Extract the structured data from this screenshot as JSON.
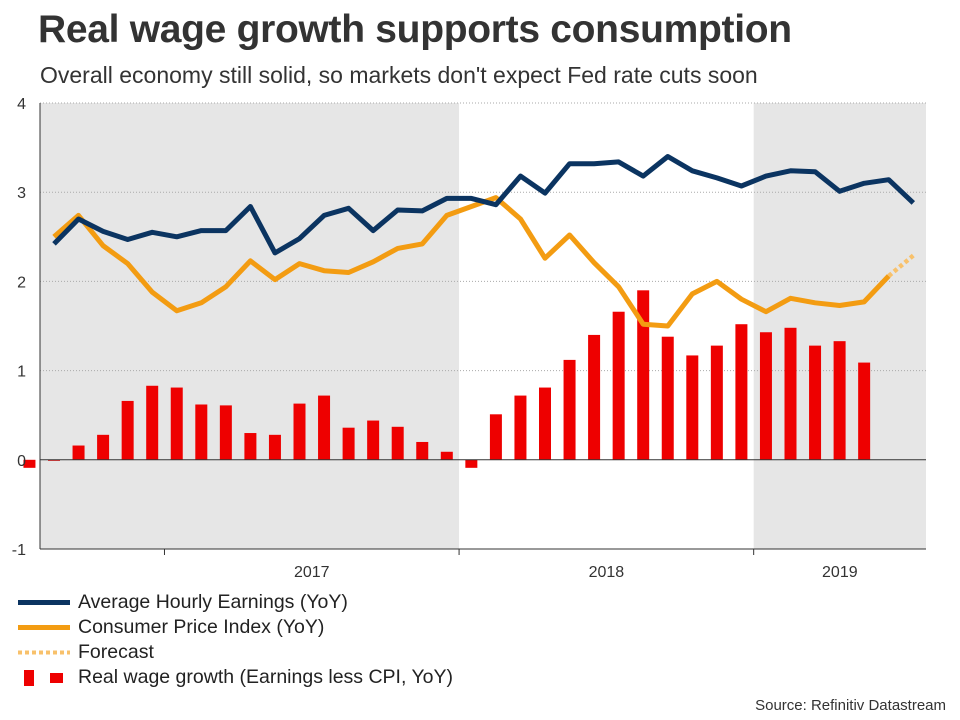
{
  "title": "Real wage growth supports consumption",
  "subtitle": "Overall economy still solid, so markets don't expect Fed rate cuts soon",
  "source": "Source: Refinitiv Datastream",
  "colors": {
    "earnings": "#0b3461",
    "cpi": "#f39c12",
    "forecast": "#f8c16b",
    "real_wage": "#ee0000",
    "shade": "#e6e6e6",
    "grid": "#aaaaaa"
  },
  "legend": {
    "earnings": "Average Hourly Earnings (YoY)",
    "cpi": "Consumer Price Index (YoY)",
    "forecast": "Forecast",
    "real_wage": "Real wage growth (Earnings less CPI, YoY)"
  },
  "chart_data": {
    "type": "bar+line",
    "title": "Real wage growth supports consumption",
    "x_start": "2016-08",
    "x_end": "2019-12",
    "year_labels": [
      "2017",
      "2018",
      "2019"
    ],
    "ylim": [
      -1,
      4
    ],
    "yticks": [
      "-1",
      "0",
      "1",
      "2",
      "3",
      "4"
    ],
    "shaded_years": [
      "2017",
      "2019"
    ],
    "series": [
      {
        "name": "Average Hourly Earnings (YoY)",
        "type": "line",
        "months": [
          "2016-08",
          "2016-09",
          "2016-10",
          "2016-11",
          "2016-12",
          "2017-01",
          "2017-02",
          "2017-03",
          "2017-04",
          "2017-05",
          "2017-06",
          "2017-07",
          "2017-08",
          "2017-09",
          "2017-10",
          "2017-11",
          "2017-12",
          "2018-01",
          "2018-02",
          "2018-03",
          "2018-04",
          "2018-05",
          "2018-06",
          "2018-07",
          "2018-08",
          "2018-09",
          "2018-10",
          "2018-11",
          "2018-12",
          "2019-01",
          "2019-02",
          "2019-03",
          "2019-04",
          "2019-05",
          "2019-06",
          "2019-07",
          "2019-08",
          "2019-09",
          "2019-10",
          "2019-11"
        ],
        "values": [
          2.42,
          2.7,
          2.56,
          2.47,
          2.55,
          2.5,
          2.57,
          2.57,
          2.84,
          2.32,
          2.48,
          2.74,
          2.82,
          2.57,
          2.8,
          2.79,
          2.93,
          2.93,
          2.86,
          3.18,
          2.99,
          3.32,
          3.32,
          3.34,
          3.18,
          3.4,
          3.24,
          3.16,
          3.07,
          3.18,
          3.24,
          3.23,
          3.01,
          3.1,
          3.14,
          2.88,
          null,
          null,
          null,
          null
        ]
      },
      {
        "name": "Consumer Price Index (YoY)",
        "type": "line",
        "months": [
          "2016-08",
          "2016-09",
          "2016-10",
          "2016-11",
          "2016-12",
          "2017-01",
          "2017-02",
          "2017-03",
          "2017-04",
          "2017-05",
          "2017-06",
          "2017-07",
          "2017-08",
          "2017-09",
          "2017-10",
          "2017-11",
          "2017-12",
          "2018-01",
          "2018-02",
          "2018-03",
          "2018-04",
          "2018-05",
          "2018-06",
          "2018-07",
          "2018-08",
          "2018-09",
          "2018-10",
          "2018-11",
          "2018-12",
          "2019-01",
          "2019-02",
          "2019-03",
          "2019-04",
          "2019-05",
          "2019-06",
          "2019-07",
          "2019-08",
          "2019-09",
          "2019-10",
          "2019-11"
        ],
        "values": [
          2.5,
          2.74,
          2.4,
          2.2,
          1.88,
          1.67,
          1.76,
          1.94,
          2.23,
          2.02,
          2.2,
          2.12,
          2.1,
          2.22,
          2.37,
          2.42,
          2.74,
          2.84,
          2.94,
          2.7,
          2.26,
          2.52,
          2.21,
          1.94,
          1.52,
          1.5,
          1.86,
          2.0,
          1.8,
          1.66,
          1.81,
          1.76,
          1.73,
          1.77,
          2.06,
          null,
          null,
          null,
          null,
          null
        ]
      },
      {
        "name": "Forecast",
        "type": "line-dotted",
        "months": [
          "2019-06",
          "2019-07"
        ],
        "values": [
          2.06,
          2.29
        ]
      },
      {
        "name": "Real wage growth (Earnings less CPI, YoY)",
        "type": "bar",
        "months": [
          "2016-07",
          "2016-08",
          "2016-09",
          "2016-10",
          "2016-11",
          "2016-12",
          "2017-01",
          "2017-02",
          "2017-03",
          "2017-04",
          "2017-05",
          "2017-06",
          "2017-07",
          "2017-08",
          "2017-09",
          "2017-10",
          "2017-11",
          "2017-12",
          "2018-01",
          "2018-02",
          "2018-03",
          "2018-04",
          "2018-05",
          "2018-06",
          "2018-07",
          "2018-08",
          "2018-09",
          "2018-10",
          "2018-11",
          "2018-12",
          "2019-01",
          "2019-02",
          "2019-03",
          "2019-04",
          "2019-05",
          "2019-06",
          "2019-07",
          "2019-08",
          "2019-09",
          "2019-10",
          "2019-11"
        ],
        "values": [
          -0.09,
          -0.01,
          0.16,
          0.28,
          0.66,
          0.83,
          0.81,
          0.62,
          0.61,
          0.3,
          0.28,
          0.63,
          0.72,
          0.36,
          0.44,
          0.37,
          0.2,
          0.09,
          -0.09,
          0.51,
          0.72,
          0.81,
          1.12,
          1.4,
          1.66,
          1.9,
          1.38,
          1.17,
          1.28,
          1.52,
          1.43,
          1.48,
          1.28,
          1.33,
          1.09,
          null,
          null,
          null,
          null,
          null,
          null
        ]
      }
    ]
  }
}
